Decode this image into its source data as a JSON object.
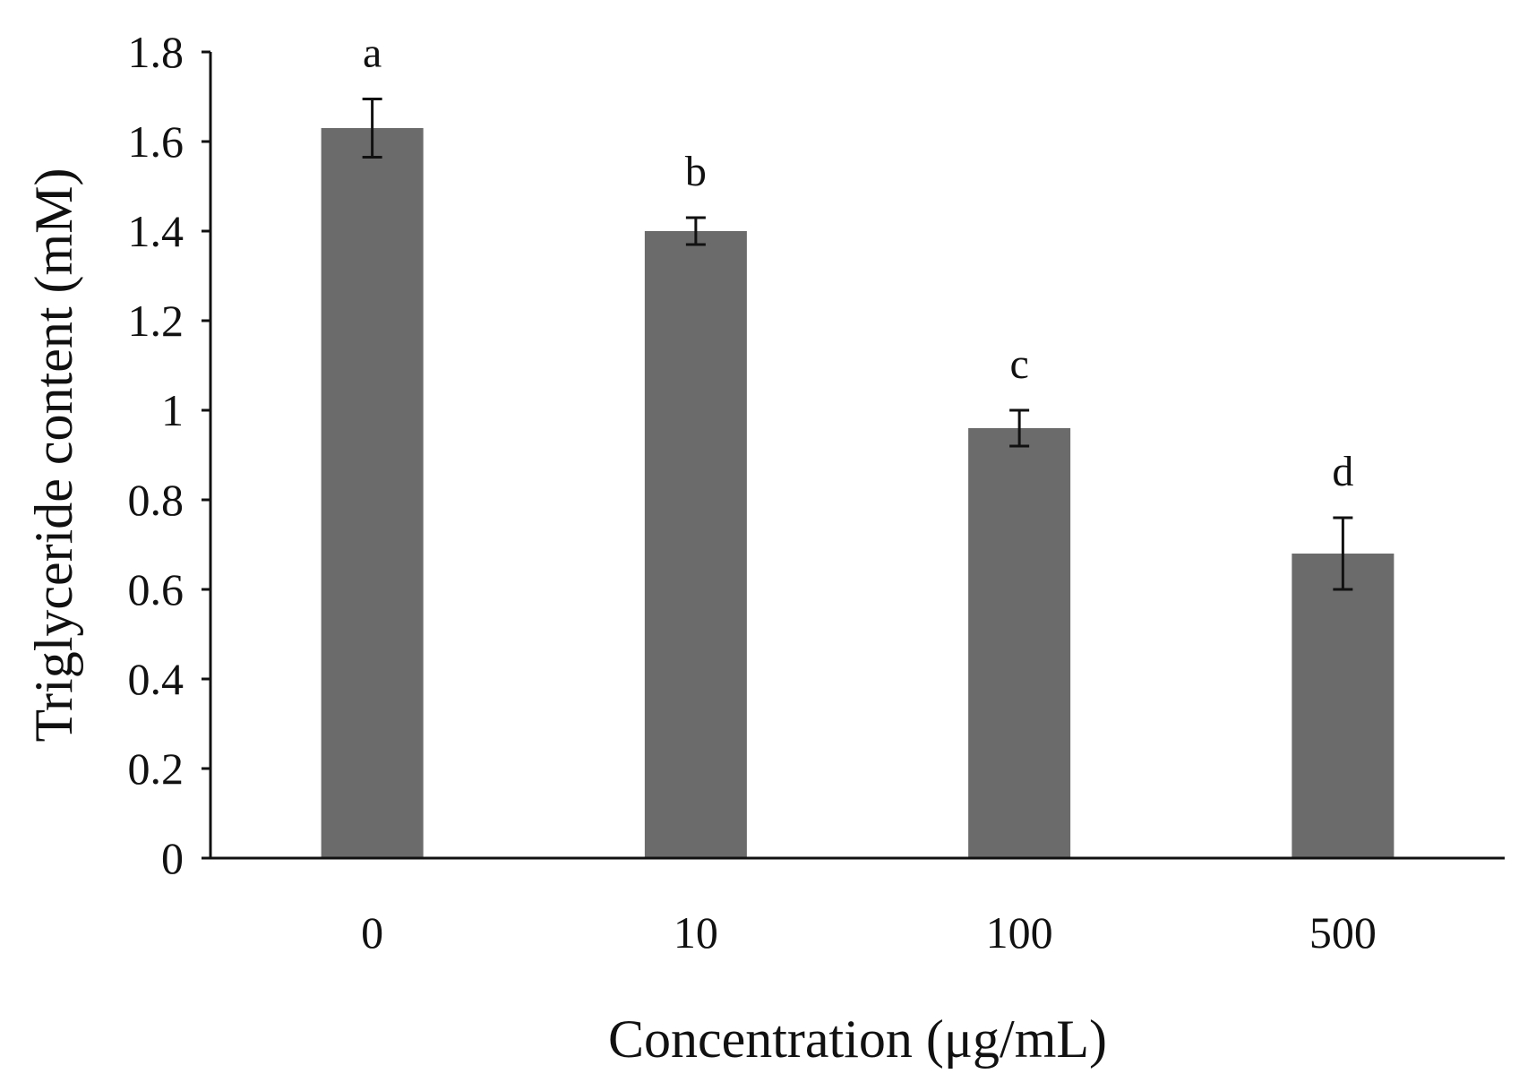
{
  "chart_data": {
    "type": "bar",
    "title": "",
    "xlabel": "Concentration (μg/mL)",
    "ylabel": "Triglyceride content (mM)",
    "categories": [
      "0",
      "10",
      "100",
      "500"
    ],
    "values": [
      1.63,
      1.4,
      0.96,
      0.68
    ],
    "error": [
      0.065,
      0.03,
      0.04,
      0.08
    ],
    "significance_labels": [
      "a",
      "b",
      "c",
      "d"
    ],
    "ylim": [
      0,
      1.8
    ],
    "yticks": [
      "0",
      "0.2",
      "0.4",
      "0.6",
      "0.8",
      "1",
      "1.2",
      "1.4",
      "1.6",
      "1.8"
    ],
    "grid": false,
    "legend": "none",
    "bar_color": "#6b6b6b",
    "axis_color": "#111111"
  }
}
